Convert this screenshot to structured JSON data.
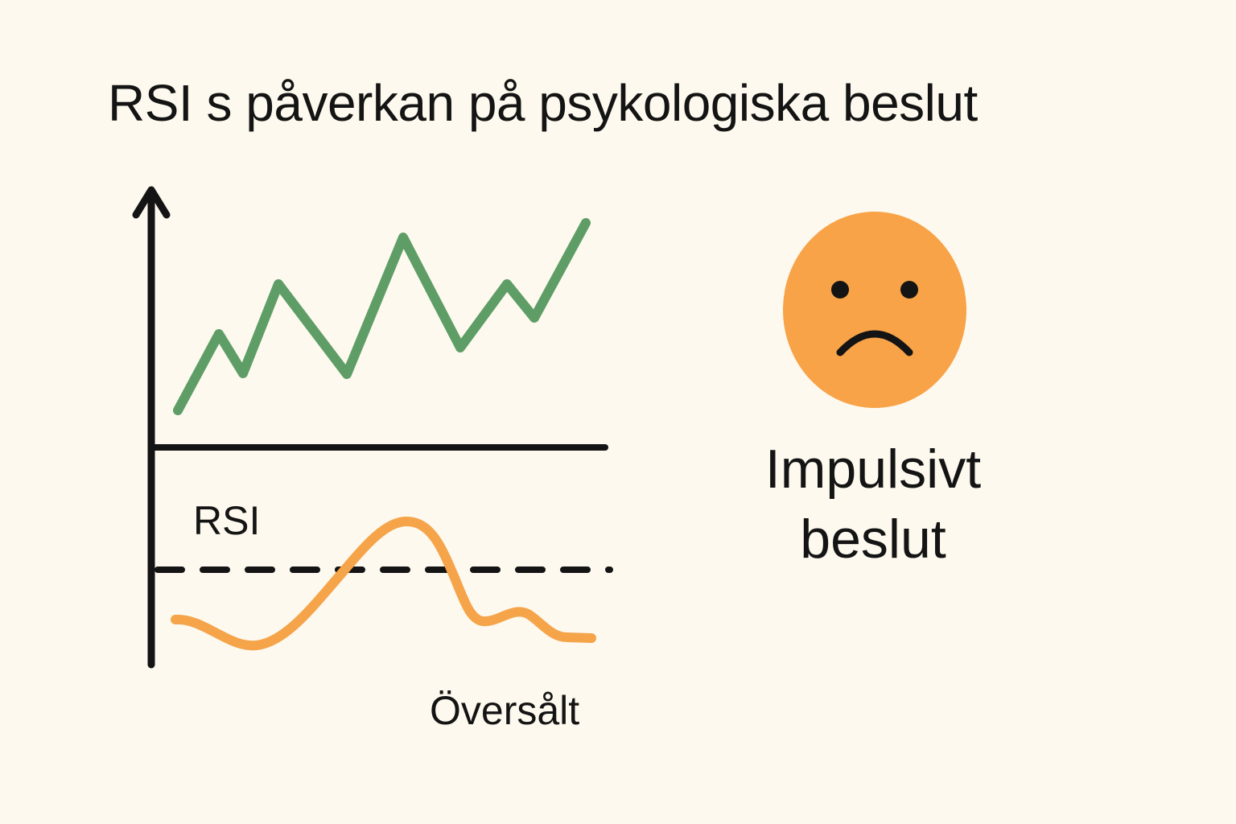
{
  "title": "RSI s påverkan på psykologiska beslut",
  "labels": {
    "rsi": "RSI",
    "oversold": "Översålt",
    "impulsive_line1": "Impulsivt",
    "impulsive_line2": "beslut"
  },
  "emotion": {
    "icon": "sad-face-icon",
    "mood": "sad"
  },
  "colors": {
    "background": "#fdf9ee",
    "price_line": "#5e9e66",
    "rsi_line": "#f5a44a",
    "face": "#f8a348",
    "ink": "#141414"
  }
}
